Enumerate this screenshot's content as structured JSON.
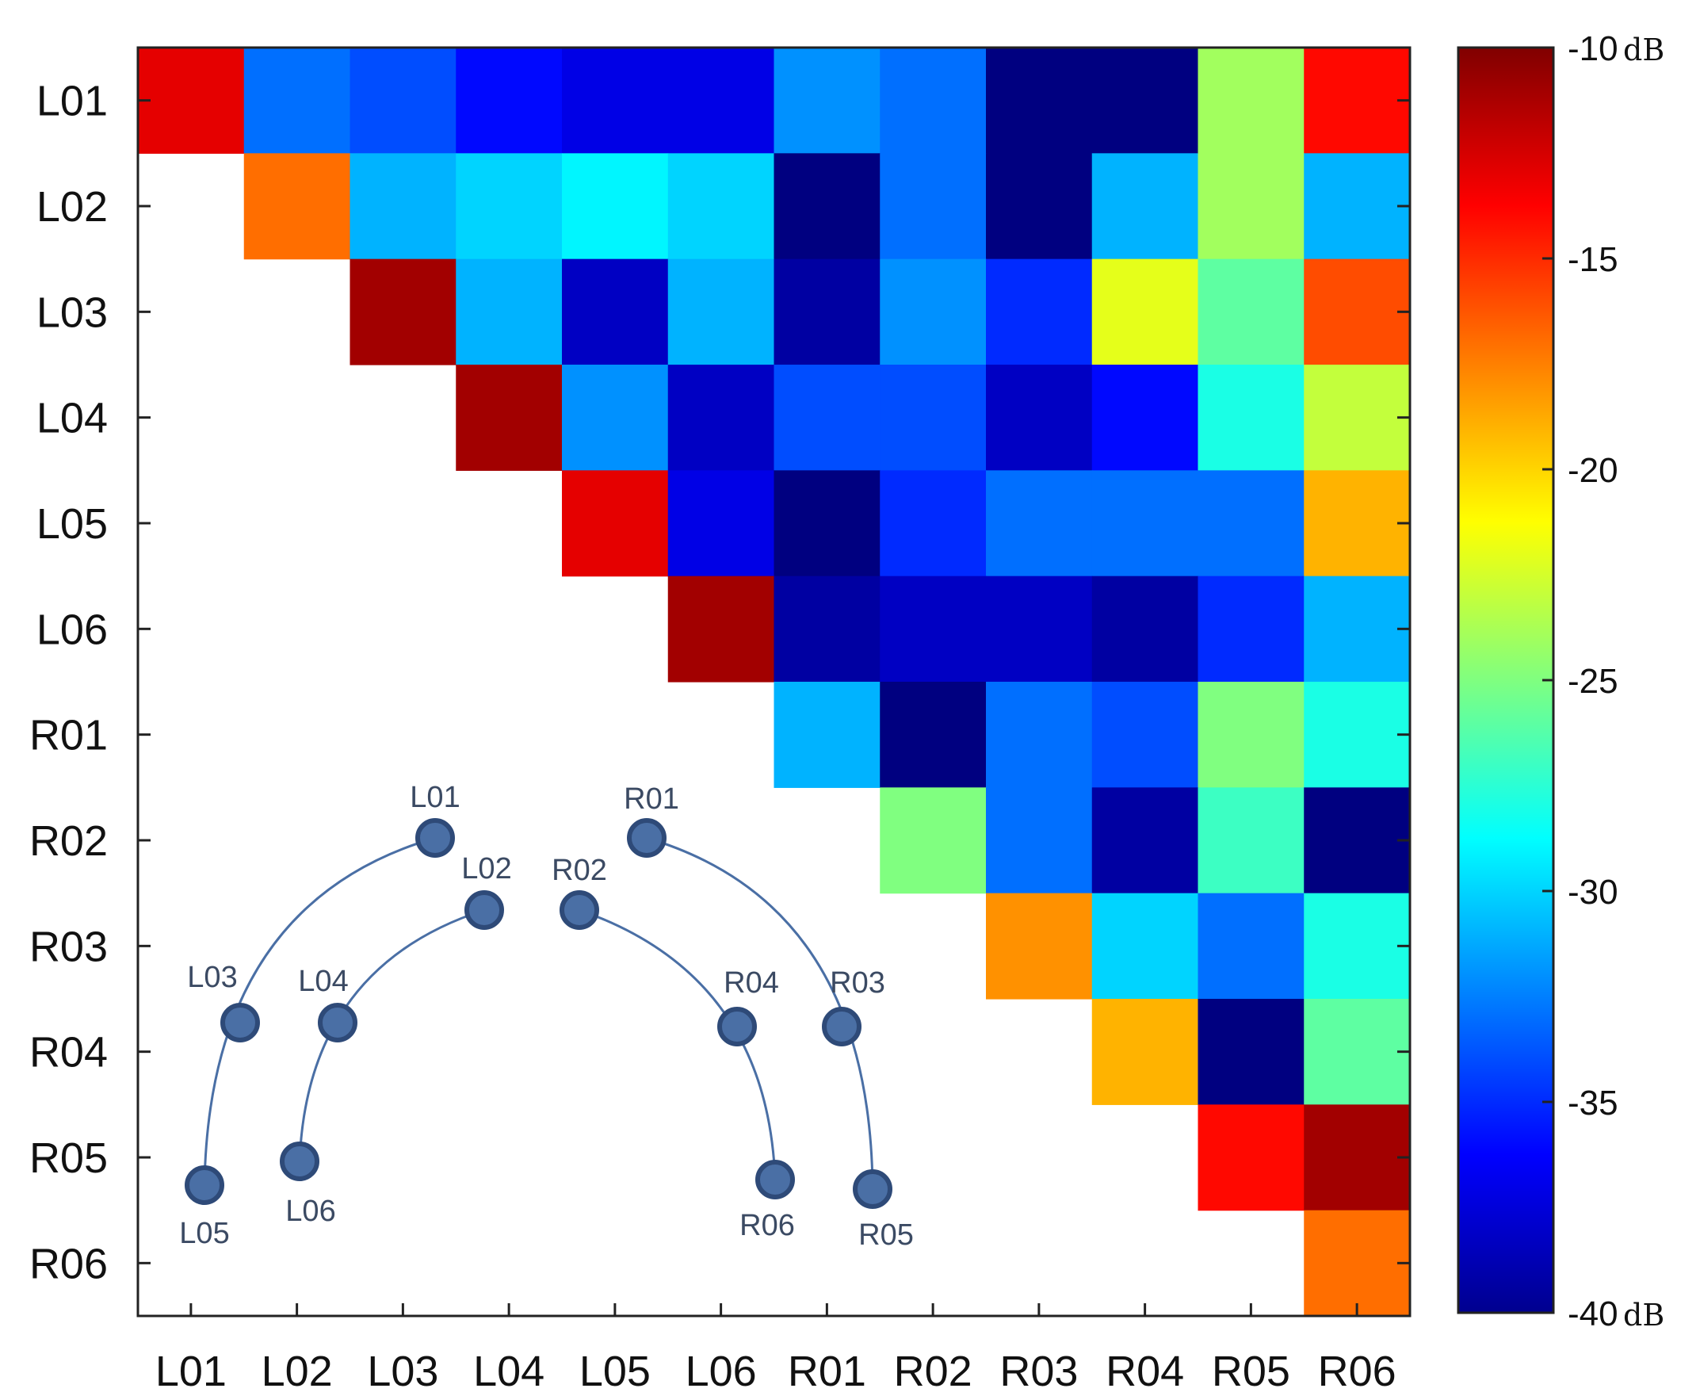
{
  "chart_data": {
    "type": "heatmap",
    "title": "",
    "xlabel": "",
    "ylabel": "",
    "categories_x": [
      "L01",
      "L02",
      "L03",
      "L04",
      "L05",
      "L06",
      "R01",
      "R02",
      "R03",
      "R04",
      "R05",
      "R06"
    ],
    "categories_y": [
      "L01",
      "L02",
      "L03",
      "L04",
      "L05",
      "L06",
      "R01",
      "R02",
      "R03",
      "R04",
      "R05",
      "R06"
    ],
    "matrix_upper_triangle": true,
    "values_db": [
      [
        -13,
        -33,
        -34,
        -36,
        -37,
        -37,
        -32,
        -33,
        -40,
        -40,
        -24,
        -14
      ],
      [
        null,
        -17,
        -31,
        -30,
        -29,
        -30,
        -40,
        -33,
        -40,
        -31,
        -24,
        -31
      ],
      [
        null,
        null,
        -11,
        -31,
        -38,
        -31,
        -39,
        -32,
        -35,
        -22,
        -26,
        -16
      ],
      [
        null,
        null,
        null,
        -11,
        -32,
        -38,
        -34,
        -34,
        -38,
        -36,
        -28,
        -23
      ],
      [
        null,
        null,
        null,
        null,
        -13,
        -37,
        -40,
        -35,
        -33,
        -33,
        -33,
        -19
      ],
      [
        null,
        null,
        null,
        null,
        null,
        -11,
        -39,
        -38,
        -38,
        -39,
        -35,
        -31
      ],
      [
        null,
        null,
        null,
        null,
        null,
        null,
        -31,
        -40,
        -33,
        -34,
        -25,
        -28
      ],
      [
        null,
        null,
        null,
        null,
        null,
        null,
        null,
        -25,
        -33,
        -39,
        -27,
        -40
      ],
      [
        null,
        null,
        null,
        null,
        null,
        null,
        null,
        null,
        -18,
        -30,
        -33,
        -28
      ],
      [
        null,
        null,
        null,
        null,
        null,
        null,
        null,
        null,
        null,
        -19,
        -40,
        -26
      ],
      [
        null,
        null,
        null,
        null,
        null,
        null,
        null,
        null,
        null,
        null,
        -14,
        -11
      ],
      [
        null,
        null,
        null,
        null,
        null,
        null,
        null,
        null,
        null,
        null,
        null,
        -17
      ]
    ],
    "colorbar": {
      "colormap": "jet",
      "range": [
        -40,
        -10
      ],
      "ticks": [
        -10,
        -15,
        -20,
        -25,
        -30,
        -35,
        -40
      ],
      "tick_labels": [
        "-10",
        "-15",
        "-20",
        "-25",
        "-30",
        "-35",
        "-40"
      ],
      "unit": "dB"
    }
  },
  "inset": {
    "electrode_labels": [
      "L01",
      "L02",
      "L03",
      "L04",
      "L05",
      "L06",
      "R01",
      "R02",
      "R03",
      "R04",
      "R05",
      "R06"
    ],
    "marker_color": "#4a6fa5",
    "marker_edge_color": "#2e4a78",
    "line_color": "#4a6fa5"
  }
}
